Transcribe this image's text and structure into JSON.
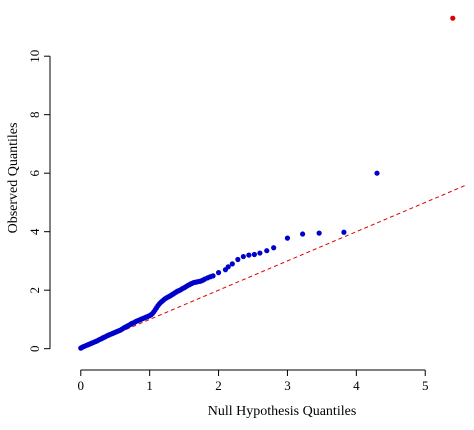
{
  "chart_data": {
    "type": "scatter",
    "xlabel": "Null Hypothesis Quantiles",
    "ylabel": "Observed Quantiles",
    "xlim": [
      -0.2,
      5.65
    ],
    "ylim": [
      -0.25,
      11.75
    ],
    "xticks": [
      0,
      1,
      2,
      3,
      4,
      5
    ],
    "yticks": [
      0,
      2,
      4,
      6,
      8,
      10
    ],
    "grid": false,
    "colors": {
      "points": "#0000cc",
      "outlier": "#dd0000",
      "reference": "#dd0000"
    },
    "reference_line": {
      "style": "dashed",
      "points": [
        [
          0,
          0
        ],
        [
          5.6,
          5.6
        ]
      ]
    },
    "series": [
      {
        "color": "#0000cc",
        "points": [
          [
            0.0,
            0.02
          ],
          [
            0.02,
            0.05
          ],
          [
            0.04,
            0.07
          ],
          [
            0.06,
            0.09
          ],
          [
            0.08,
            0.11
          ],
          [
            0.1,
            0.13
          ],
          [
            0.12,
            0.15
          ],
          [
            0.14,
            0.17
          ],
          [
            0.16,
            0.19
          ],
          [
            0.18,
            0.21
          ],
          [
            0.2,
            0.23
          ],
          [
            0.22,
            0.25
          ],
          [
            0.24,
            0.27
          ],
          [
            0.26,
            0.3
          ],
          [
            0.28,
            0.32
          ],
          [
            0.3,
            0.34
          ],
          [
            0.32,
            0.37
          ],
          [
            0.34,
            0.39
          ],
          [
            0.36,
            0.41
          ],
          [
            0.38,
            0.44
          ],
          [
            0.4,
            0.46
          ],
          [
            0.42,
            0.48
          ],
          [
            0.44,
            0.5
          ],
          [
            0.46,
            0.52
          ],
          [
            0.48,
            0.54
          ],
          [
            0.5,
            0.56
          ],
          [
            0.52,
            0.58
          ],
          [
            0.54,
            0.6
          ],
          [
            0.56,
            0.62
          ],
          [
            0.58,
            0.64
          ],
          [
            0.6,
            0.67
          ],
          [
            0.62,
            0.7
          ],
          [
            0.64,
            0.73
          ],
          [
            0.66,
            0.75
          ],
          [
            0.68,
            0.78
          ],
          [
            0.7,
            0.8
          ],
          [
            0.72,
            0.83
          ],
          [
            0.74,
            0.86
          ],
          [
            0.76,
            0.88
          ],
          [
            0.78,
            0.9
          ],
          [
            0.8,
            0.93
          ],
          [
            0.82,
            0.95
          ],
          [
            0.84,
            0.97
          ],
          [
            0.86,
            0.99
          ],
          [
            0.88,
            1.01
          ],
          [
            0.9,
            1.03
          ],
          [
            0.92,
            1.05
          ],
          [
            0.94,
            1.07
          ],
          [
            0.96,
            1.09
          ],
          [
            0.98,
            1.11
          ],
          [
            1.0,
            1.13
          ],
          [
            1.02,
            1.16
          ],
          [
            1.04,
            1.2
          ],
          [
            1.06,
            1.26
          ],
          [
            1.08,
            1.33
          ],
          [
            1.1,
            1.4
          ],
          [
            1.12,
            1.47
          ],
          [
            1.14,
            1.53
          ],
          [
            1.16,
            1.58
          ],
          [
            1.18,
            1.62
          ],
          [
            1.2,
            1.66
          ],
          [
            1.22,
            1.7
          ],
          [
            1.24,
            1.73
          ],
          [
            1.26,
            1.76
          ],
          [
            1.28,
            1.78
          ],
          [
            1.3,
            1.81
          ],
          [
            1.32,
            1.84
          ],
          [
            1.34,
            1.87
          ],
          [
            1.36,
            1.9
          ],
          [
            1.38,
            1.93
          ],
          [
            1.4,
            1.96
          ],
          [
            1.42,
            1.98
          ],
          [
            1.44,
            2.0
          ],
          [
            1.46,
            2.03
          ],
          [
            1.48,
            2.06
          ],
          [
            1.5,
            2.08
          ],
          [
            1.52,
            2.11
          ],
          [
            1.54,
            2.14
          ],
          [
            1.56,
            2.17
          ],
          [
            1.58,
            2.19
          ],
          [
            1.6,
            2.22
          ],
          [
            1.62,
            2.24
          ],
          [
            1.64,
            2.26
          ],
          [
            1.66,
            2.27
          ],
          [
            1.68,
            2.28
          ],
          [
            1.7,
            2.29
          ],
          [
            1.72,
            2.3
          ],
          [
            1.74,
            2.31
          ],
          [
            1.76,
            2.33
          ],
          [
            1.78,
            2.35
          ],
          [
            1.8,
            2.38
          ],
          [
            1.84,
            2.42
          ],
          [
            1.88,
            2.46
          ],
          [
            1.92,
            2.49
          ],
          [
            2.0,
            2.6
          ],
          [
            2.1,
            2.7
          ],
          [
            2.14,
            2.8
          ],
          [
            2.2,
            2.9
          ],
          [
            2.28,
            3.05
          ],
          [
            2.36,
            3.15
          ],
          [
            2.44,
            3.2
          ],
          [
            2.52,
            3.22
          ],
          [
            2.6,
            3.27
          ],
          [
            2.7,
            3.35
          ],
          [
            2.8,
            3.45
          ],
          [
            3.0,
            3.78
          ],
          [
            3.22,
            3.92
          ],
          [
            3.46,
            3.95
          ],
          [
            3.82,
            3.98
          ],
          [
            4.3,
            6.0
          ]
        ]
      },
      {
        "color": "#dd0000",
        "points": [
          [
            5.4,
            11.3
          ]
        ]
      }
    ]
  }
}
